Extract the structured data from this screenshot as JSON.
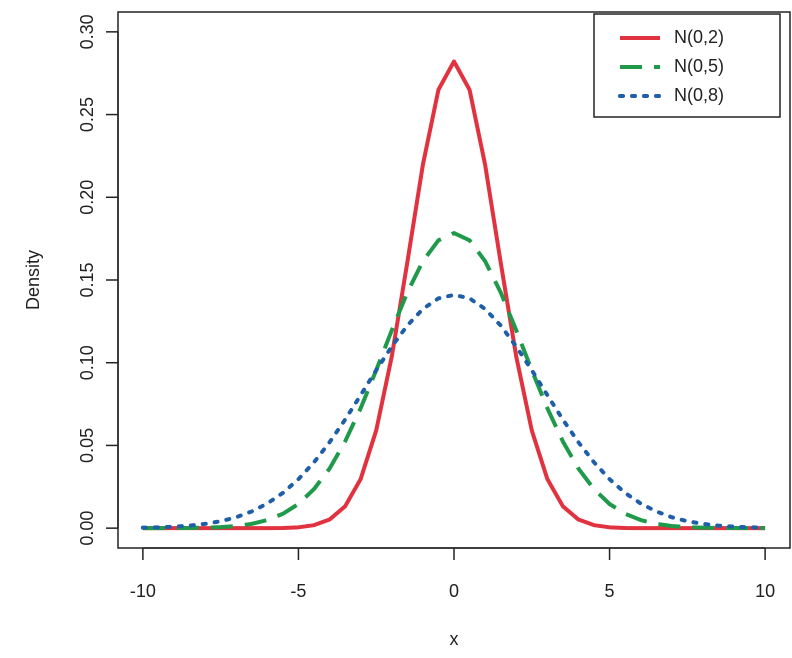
{
  "chart_data": {
    "type": "line",
    "x_label": "x",
    "y_label": "Density",
    "x": [
      -10,
      -9.5,
      -9,
      -8.5,
      -8,
      -7.5,
      -7,
      -6.5,
      -6,
      -5.5,
      -5,
      -4.5,
      -4,
      -3.5,
      -3,
      -2.5,
      -2,
      -1.5,
      -1,
      -0.5,
      0,
      0.5,
      1,
      1.5,
      2,
      2.5,
      3,
      3.5,
      4,
      4.5,
      5,
      5.5,
      6,
      6.5,
      7,
      7.5,
      8,
      8.5,
      9,
      9.5,
      10
    ],
    "series": [
      {
        "name": "N(0,2)",
        "color": "#e0323f",
        "line_style": "solid",
        "values": [
          0,
          0,
          0,
          0,
          0,
          0,
          0,
          0,
          0.0,
          0.0001,
          0.0005,
          0.0018,
          0.0052,
          0.0132,
          0.0297,
          0.0591,
          0.1038,
          0.1607,
          0.2197,
          0.265,
          0.2821,
          0.265,
          0.2197,
          0.1607,
          0.1038,
          0.0591,
          0.0297,
          0.0132,
          0.0052,
          0.0018,
          0.0005,
          0.0001,
          0.0,
          0,
          0,
          0,
          0,
          0,
          0,
          0,
          0
        ]
      },
      {
        "name": "N(0,5)",
        "color": "#1f9a4a",
        "line_style": "dashed",
        "values": [
          0.0,
          0.0,
          0.0001,
          0.0001,
          0.0003,
          0.0006,
          0.0013,
          0.0026,
          0.0049,
          0.0087,
          0.0146,
          0.0236,
          0.036,
          0.0524,
          0.0725,
          0.0955,
          0.1196,
          0.1425,
          0.1614,
          0.174,
          0.1784,
          0.174,
          0.1614,
          0.1425,
          0.1196,
          0.0955,
          0.0725,
          0.0524,
          0.036,
          0.0236,
          0.0146,
          0.0087,
          0.0049,
          0.0026,
          0.0013,
          0.0006,
          0.0003,
          0.0001,
          0.0001,
          0.0,
          0.0
        ]
      },
      {
        "name": "N(0,8)",
        "color": "#1f5fa8",
        "line_style": "dotted",
        "values": [
          0.0003,
          0.0005,
          0.0009,
          0.0015,
          0.0026,
          0.0042,
          0.0066,
          0.0101,
          0.0149,
          0.0213,
          0.0296,
          0.0398,
          0.0519,
          0.0656,
          0.0804,
          0.0955,
          0.1098,
          0.1225,
          0.1325,
          0.1389,
          0.141,
          0.1389,
          0.1325,
          0.1225,
          0.1098,
          0.0955,
          0.0804,
          0.0656,
          0.0519,
          0.0398,
          0.0296,
          0.0213,
          0.0149,
          0.0101,
          0.0066,
          0.0042,
          0.0026,
          0.0015,
          0.0009,
          0.0005,
          0.0003
        ]
      }
    ],
    "xlim": [
      -10.8,
      10.8
    ],
    "xticks": [
      -10,
      -5,
      0,
      5,
      10
    ],
    "ylim": [
      -0.012,
      0.312
    ],
    "yticks": [
      {
        "value": 0,
        "label": "0.00"
      },
      0.05,
      {
        "value": 0.1,
        "label": "0.10"
      },
      0.15,
      {
        "value": 0.2,
        "label": "0.20"
      },
      0.25,
      {
        "value": 0.3,
        "label": "0.30"
      }
    ],
    "legend": "top-right"
  }
}
